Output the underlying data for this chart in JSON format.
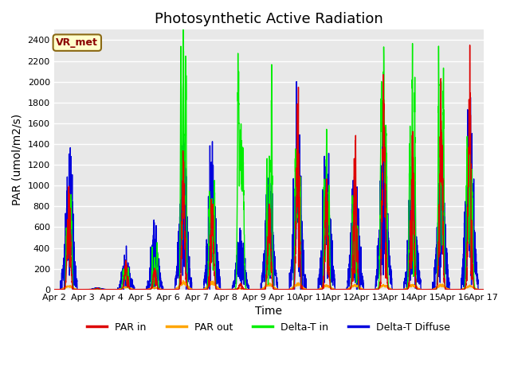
{
  "title": "Photosynthetic Active Radiation",
  "ylabel": "PAR (umol/m2/s)",
  "xlabel": "Time",
  "annotation": "VR_met",
  "ylim": [
    0,
    2500
  ],
  "yticks": [
    0,
    200,
    400,
    600,
    800,
    1000,
    1200,
    1400,
    1600,
    1800,
    2000,
    2200,
    2400
  ],
  "xtick_labels": [
    "Apr 2",
    "Apr 3",
    "Apr 4",
    "Apr 5",
    "Apr 6",
    "Apr 7",
    "Apr 8",
    "Apr 9",
    "Apr 10",
    "Apr 11",
    "Apr 12",
    "Apr 13",
    "Apr 14",
    "Apr 15",
    "Apr 16",
    "Apr 17"
  ],
  "colors": {
    "PAR_in": "#dd0000",
    "PAR_out": "#ffa500",
    "Delta_T_in": "#00ee00",
    "Delta_T_Diffuse": "#0000dd"
  },
  "legend_labels": [
    "PAR in",
    "PAR out",
    "Delta-T in",
    "Delta-T Diffuse"
  ],
  "bg_color": "#e8e8e8",
  "title_fontsize": 13,
  "label_fontsize": 10,
  "day_peaks": {
    "PAR_in": [
      900,
      10,
      240,
      195,
      1030,
      780,
      50,
      700,
      1570,
      840,
      1240,
      1650,
      1265,
      1560,
      1650
    ],
    "PAR_out": [
      60,
      5,
      45,
      35,
      130,
      130,
      20,
      100,
      100,
      70,
      80,
      75,
      80,
      80,
      60
    ],
    "Delta_T_in": [
      850,
      10,
      200,
      400,
      2200,
      1000,
      2030,
      1900,
      1200,
      1200,
      900,
      2040,
      2030,
      1960,
      1660
    ],
    "Delta_T_Diff": [
      750,
      10,
      200,
      380,
      900,
      800,
      350,
      700,
      1030,
      870,
      720,
      910,
      780,
      770,
      1020
    ]
  },
  "lw": 1.0
}
